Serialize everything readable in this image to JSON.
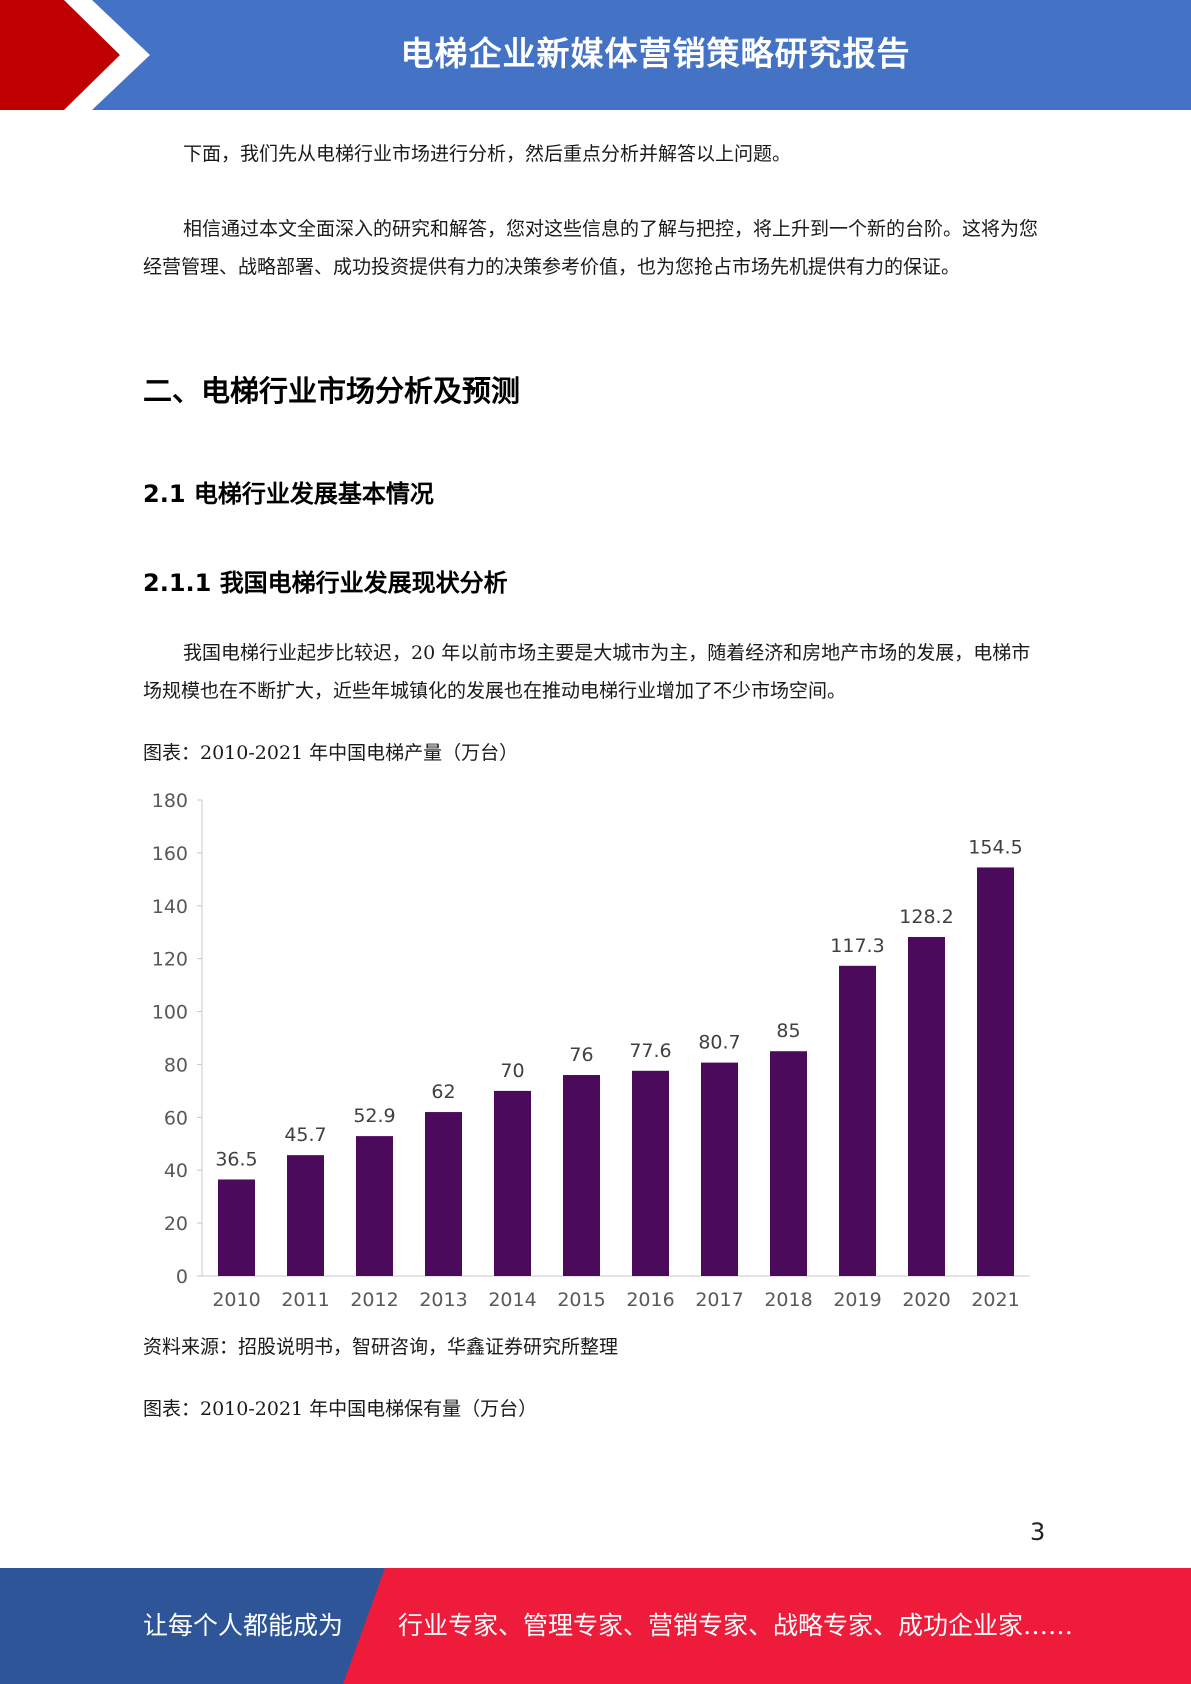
{
  "header": {
    "title": "电梯企业新媒体营销策略研究报告"
  },
  "body": {
    "para1": "下面，我们先从电梯行业市场进行分析，然后重点分析并解答以上问题。",
    "para2": "相信通过本文全面深入的研究和解答，您对这些信息的了解与把控，将上升到一个新的台阶。这将为您经营管理、战略部署、成功投资提供有力的决策参考价值，也为您抢占市场先机提供有力的保证。",
    "section_title": "二、电梯行业市场分析及预测",
    "subsection_title": "2.1 电梯行业发展基本情况",
    "subsubsection_title": "2.1.1 我国电梯行业发展现状分析",
    "para3": "我国电梯行业起步比较迟，20 年以前市场主要是大城市为主，随着经济和房地产市场的发展，电梯市场规模也在不断扩大，近些年城镇化的发展也在推动电梯行业增加了不少市场空间。",
    "chart1_caption": "图表：2010-2021 年中国电梯产量（万台）",
    "source": "资料来源：招股说明书，智研咨询，华鑫证券研究所整理",
    "chart2_caption": "图表：2010-2021 年中国电梯保有量（万台）"
  },
  "chart_data": {
    "type": "bar",
    "categories": [
      "2010",
      "2011",
      "2012",
      "2013",
      "2014",
      "2015",
      "2016",
      "2017",
      "2018",
      "2019",
      "2020",
      "2021"
    ],
    "values": [
      36.5,
      45.7,
      52.9,
      62,
      70,
      76,
      77.6,
      80.7,
      85,
      117.3,
      128.2,
      154.5
    ],
    "value_labels": [
      "36.5",
      "45.7",
      "52.9",
      "62",
      "70",
      "76",
      "77.6",
      "80.7",
      "85",
      "117.3",
      "128.2",
      "154.5"
    ],
    "ylim": [
      0,
      180
    ],
    "yticks": [
      0,
      20,
      40,
      60,
      80,
      100,
      120,
      140,
      160,
      180
    ],
    "bar_color": "#4b0a5c",
    "grid": false
  },
  "page_number": "3",
  "footer": {
    "left_text": "让每个人都能成为",
    "right_text": "行业专家、管理专家、营销专家、战略专家、成功企业家……"
  },
  "colors": {
    "header_blue": "#4472c4",
    "accent_red": "#c00000",
    "footer_blue": "#2e5597",
    "footer_red": "#ee1c3a"
  }
}
